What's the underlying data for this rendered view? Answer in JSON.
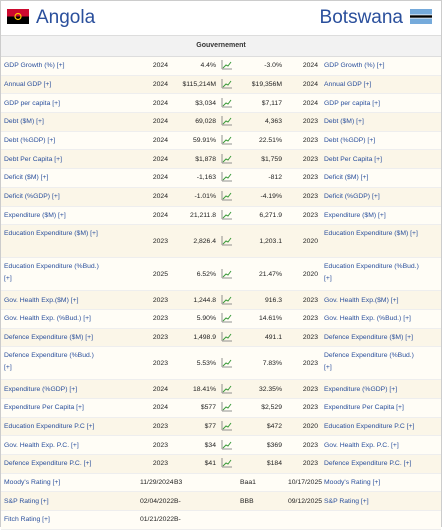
{
  "header": {
    "left_country": "Angola",
    "right_country": "Botswana"
  },
  "section": "Gouvernement",
  "rows": [
    {
      "left_label": "GDP Growth (%) [+]",
      "left_year": "2024",
      "left_value": "4.4%",
      "right_value": "-3.0%",
      "right_year": "2024",
      "right_label": "GDP Growth (%) [+]"
    },
    {
      "left_label": "Annual GDP [+]",
      "left_year": "2024",
      "left_value": "$115,214M",
      "right_value": "$19,356M",
      "right_year": "2024",
      "right_label": "Annual GDP [+]"
    },
    {
      "left_label": "GDP per capita [+]",
      "left_year": "2024",
      "left_value": "$3,034",
      "right_value": "$7,117",
      "right_year": "2024",
      "right_label": "GDP per capita [+]"
    },
    {
      "left_label": "Debt ($M) [+]",
      "left_year": "2024",
      "left_value": "69,028",
      "right_value": "4,363",
      "right_year": "2023",
      "right_label": "Debt ($M) [+]"
    },
    {
      "left_label": "Debt (%GDP) [+]",
      "left_year": "2024",
      "left_value": "59.91%",
      "right_value": "22.51%",
      "right_year": "2023",
      "right_label": "Debt (%GDP) [+]"
    },
    {
      "left_label": "Debt Per Capita [+]",
      "left_year": "2024",
      "left_value": "$1,878",
      "right_value": "$1,759",
      "right_year": "2023",
      "right_label": "Debt Per Capita [+]"
    },
    {
      "left_label": "Deficit ($M) [+]",
      "left_year": "2024",
      "left_value": "-1,163",
      "right_value": "-812",
      "right_year": "2023",
      "right_label": "Deficit ($M) [+]"
    },
    {
      "left_label": "Deficit (%GDP) [+]",
      "left_year": "2024",
      "left_value": "-1.01%",
      "right_value": "-4.19%",
      "right_year": "2023",
      "right_label": "Deficit (%GDP) [+]"
    },
    {
      "left_label": "Expenditure ($M) [+]",
      "left_year": "2024",
      "left_value": "21,211.8",
      "right_value": "6,271.9",
      "right_year": "2023",
      "right_label": "Expenditure ($M) [+]"
    },
    {
      "left_label": "Education Expenditure ($M) [+]",
      "left_year": "2023",
      "left_value": "2,826.4",
      "right_value": "1,203.1",
      "right_year": "2020",
      "right_label": "Education Expenditure ($M) [+]"
    },
    {
      "left_label": "Education Expenditure (%Bud.) [+]",
      "left_year": "2025",
      "left_value": "6.52%",
      "right_value": "21.47%",
      "right_year": "2020",
      "right_label": "Education Expenditure (%Bud.) [+]"
    },
    {
      "left_label": "Gov. Health Exp.($M) [+]",
      "left_year": "2023",
      "left_value": "1,244.8",
      "right_value": "916.3",
      "right_year": "2023",
      "right_label": "Gov. Health Exp.($M) [+]"
    },
    {
      "left_label": "Gov. Health Exp. (%Bud.) [+]",
      "left_year": "2023",
      "left_value": "5.90%",
      "right_value": "14.61%",
      "right_year": "2023",
      "right_label": "Gov. Health Exp. (%Bud.) [+]"
    },
    {
      "left_label": "Defence Expenditure ($M) [+]",
      "left_year": "2023",
      "left_value": "1,498.9",
      "right_value": "491.1",
      "right_year": "2023",
      "right_label": "Defence Expenditure ($M) [+]"
    },
    {
      "left_label": "Defence Expenditure (%Bud.) [+]",
      "left_year": "2023",
      "left_value": "5.53%",
      "right_value": "7.83%",
      "right_year": "2023",
      "right_label": "Defence Expenditure (%Bud.) [+]"
    },
    {
      "left_label": "Expenditure (%GDP) [+]",
      "left_year": "2024",
      "left_value": "18.41%",
      "right_value": "32.35%",
      "right_year": "2023",
      "right_label": "Expenditure (%GDP) [+]"
    },
    {
      "left_label": "Expenditure Per Capita [+]",
      "left_year": "2024",
      "left_value": "$577",
      "right_value": "$2,529",
      "right_year": "2023",
      "right_label": "Expenditure Per Capita [+]"
    },
    {
      "left_label": "Education Expenditure P.C [+]",
      "left_year": "2023",
      "left_value": "$77",
      "right_value": "$472",
      "right_year": "2020",
      "right_label": "Education Expenditure P.C [+]"
    },
    {
      "left_label": "Gov. Health Exp. P.C. [+]",
      "left_year": "2023",
      "left_value": "$34",
      "right_value": "$369",
      "right_year": "2023",
      "right_label": "Gov. Health Exp. P.C. [+]"
    },
    {
      "left_label": "Defence Expenditure P.C. [+]",
      "left_year": "2023",
      "left_value": "$41",
      "right_value": "$184",
      "right_year": "2023",
      "right_label": "Defence Expenditure P.C. [+]"
    },
    {
      "left_label": "Moody's Rating [+]",
      "left_year": "11/29/2024",
      "left_value": "B3",
      "right_value": "Baa1",
      "right_year": "10/17/2025",
      "right_label": "Moody's Rating [+]"
    },
    {
      "left_label": "S&P Rating [+]",
      "left_year": "02/04/2022",
      "left_value": "B-",
      "right_value": "BBB",
      "right_year": "09/12/2025",
      "right_label": "S&P Rating [+]"
    },
    {
      "left_label": "Fitch Rating [+]",
      "left_year": "01/21/2022",
      "left_value": "B-"
    }
  ]
}
